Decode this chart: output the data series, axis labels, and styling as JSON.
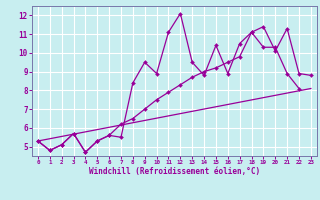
{
  "xlabel": "Windchill (Refroidissement éolien,°C)",
  "bg_color": "#c8eef0",
  "line_color": "#990099",
  "grid_color": "#ffffff",
  "xlim": [
    -0.5,
    23.5
  ],
  "ylim": [
    4.5,
    12.5
  ],
  "yticks": [
    5,
    6,
    7,
    8,
    9,
    10,
    11,
    12
  ],
  "xticks": [
    0,
    1,
    2,
    3,
    4,
    5,
    6,
    7,
    8,
    9,
    10,
    11,
    12,
    13,
    14,
    15,
    16,
    17,
    18,
    19,
    20,
    21,
    22,
    23
  ],
  "lines": [
    {
      "x": [
        0,
        1,
        2,
        3,
        4,
        5,
        6,
        7,
        8,
        9,
        10,
        11,
        12,
        13,
        14,
        15,
        16,
        17,
        18,
        19,
        20,
        21,
        22
      ],
      "y": [
        5.3,
        4.8,
        5.1,
        5.7,
        4.7,
        5.3,
        5.6,
        5.5,
        8.4,
        9.5,
        8.9,
        11.1,
        12.1,
        9.5,
        8.8,
        10.4,
        8.9,
        10.5,
        11.1,
        10.3,
        10.3,
        8.9,
        8.1
      ],
      "marker": true,
      "linewidth": 0.9
    },
    {
      "x": [
        0,
        1,
        2,
        3,
        4,
        5,
        6,
        7,
        8,
        9,
        10,
        11,
        12,
        13,
        14,
        15,
        16,
        17,
        18,
        19,
        20,
        21,
        22,
        23
      ],
      "y": [
        5.3,
        4.8,
        5.1,
        5.7,
        4.7,
        5.3,
        5.6,
        6.2,
        6.5,
        7.0,
        7.5,
        7.9,
        8.3,
        8.7,
        9.0,
        9.2,
        9.5,
        9.8,
        11.1,
        11.4,
        10.1,
        11.3,
        8.9,
        8.8
      ],
      "marker": true,
      "linewidth": 0.9
    },
    {
      "x": [
        0,
        23
      ],
      "y": [
        5.3,
        8.1
      ],
      "marker": false,
      "linewidth": 0.9
    }
  ]
}
